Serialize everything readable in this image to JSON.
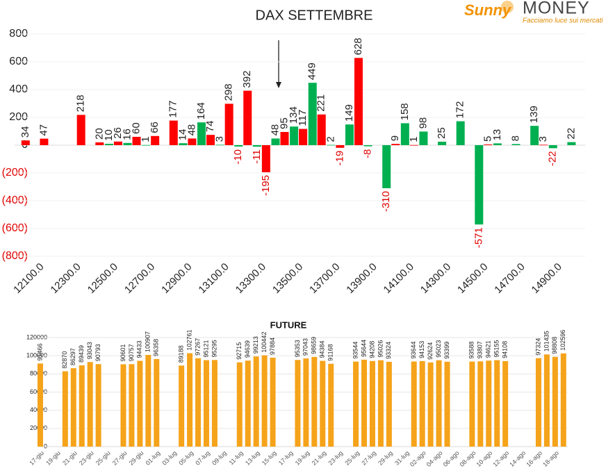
{
  "logo": {
    "brand": "Sunny",
    "name": "MONEY",
    "tagline": "Facciamo luce sui mercati"
  },
  "chart_data": [
    {
      "type": "bar",
      "title": "DAX SETTEMBRE",
      "categories": [
        null,
        "12100.0",
        null,
        "12300.0",
        null,
        "12500.0",
        null,
        "12700.0",
        null,
        "12900.0",
        null,
        "13100.0",
        null,
        "13300.0",
        null,
        "13500.0",
        null,
        "13700.0",
        null,
        "13900.0",
        null,
        "14100.0",
        null,
        "14300.0",
        null,
        "14500.0",
        null,
        "14700.0",
        null,
        "14900.0",
        null
      ],
      "series": [
        {
          "color": "#00b050",
          "values": [
            null,
            null,
            null,
            null,
            null,
            10,
            16,
            1,
            null,
            14,
            164,
            3,
            -10,
            -11,
            48,
            134,
            449,
            2,
            149,
            -8,
            -310,
            158,
            98,
            25,
            172,
            -571,
            13,
            8,
            139,
            -22,
            22
          ]
        },
        {
          "color": "#ff0000",
          "values": [
            34,
            47,
            null,
            218,
            20,
            26,
            60,
            66,
            177,
            48,
            74,
            298,
            392,
            -195,
            95,
            117,
            221,
            -19,
            628,
            null,
            9,
            1,
            null,
            null,
            null,
            5,
            null,
            null,
            3,
            null,
            null
          ]
        }
      ],
      "ylim": [
        -800,
        800
      ],
      "yticks": [
        800,
        600,
        400,
        200,
        0,
        {
          "value": -200,
          "label": "(200)"
        },
        {
          "value": -400,
          "label": "(400)"
        },
        {
          "value": -600,
          "label": "(600)"
        },
        {
          "value": -800,
          "label": "(800)"
        }
      ],
      "grid": true
    },
    {
      "type": "bar",
      "title": "FUTURE",
      "color": "#f5a31a",
      "categories": [
        "17-giu",
        null,
        "19-giu",
        null,
        "21-giu",
        null,
        "23-giu",
        null,
        "25-giu",
        null,
        "27-giu",
        null,
        "29-giu",
        null,
        "01-lug",
        null,
        "03-lug",
        null,
        "05-lug",
        null,
        "07-lug",
        null,
        "09-lug",
        null,
        "11-lug",
        null,
        "13-lug",
        null,
        "15-lug",
        null,
        "17-lug",
        null,
        "19-lug",
        null,
        "21-lug",
        null,
        "23-lug",
        null,
        "25-lug",
        null,
        "27-lug",
        null,
        "29-lug",
        null,
        "31-lug",
        null,
        "02-ago",
        null,
        "04-ago",
        null,
        "06-ago",
        null,
        "08-ago",
        null,
        "10-ago",
        null,
        "12-ago",
        null,
        "14-ago",
        null,
        "16-ago",
        null,
        "18-ago",
        null
      ],
      "values": [
        91466,
        null,
        null,
        82870,
        86297,
        89439,
        93043,
        90793,
        null,
        null,
        90601,
        90757,
        94433,
        100907,
        96358,
        null,
        null,
        89188,
        102761,
        97267,
        95121,
        95295,
        null,
        null,
        92715,
        94639,
        99213,
        100442,
        97884,
        null,
        null,
        95353,
        97043,
        98659,
        94384,
        91168,
        null,
        null,
        93544,
        95644,
        94208,
        95026,
        93324,
        null,
        null,
        93644,
        94153,
        92624,
        95023,
        93399,
        null,
        null,
        93588,
        93807,
        94621,
        95155,
        94108,
        null,
        null,
        null,
        97324,
        101435,
        98808,
        102596
      ],
      "ylim": [
        0,
        120000
      ],
      "yticks": [
        0,
        20000,
        40000,
        60000,
        80000,
        100000,
        120000
      ],
      "grid": true
    }
  ]
}
